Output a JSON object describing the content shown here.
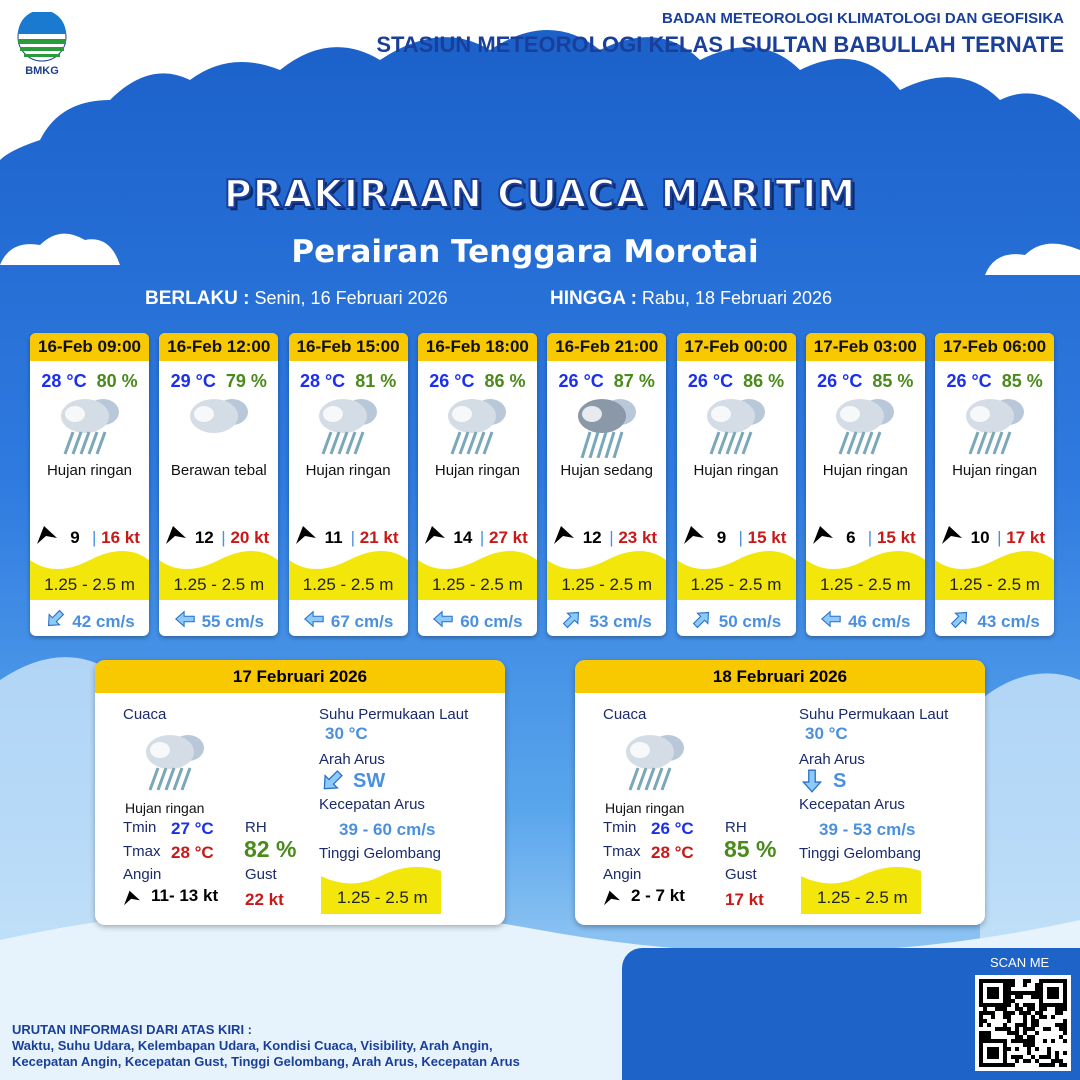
{
  "header": {
    "logo_text": "BMKG",
    "org_line1": "BADAN METEOROLOGI KLIMATOLOGI DAN GEOFISIKA",
    "org_line2": "STASIUN METEOROLOGI KELAS I SULTAN BABULLAH TERNATE"
  },
  "title": "PRAKIRAAN CUACA MARITIM",
  "subtitle": "Perairan Tenggara Morotai",
  "validity": {
    "from_label": "BERLAKU :",
    "from_date": "Senin, 16 Februari 2026",
    "to_label": "HINGGA :",
    "to_date": "Rabu, 18 Februari 2026"
  },
  "colors": {
    "header_yellow": "#f8c800",
    "temp_blue": "#1a2ff0",
    "rh_green": "#4a8a1a",
    "gust_red": "#c81818",
    "current_blue": "#4a90e0",
    "wave_yellow": "#f2e60a"
  },
  "forecasts": [
    {
      "time": "16-Feb 09:00",
      "temp": "28 °C",
      "rh": "80 %",
      "icon": "light-rain-icon",
      "weather": "Hujan ringan",
      "wind": "9",
      "gust": "16 kt",
      "wave": "1.25 - 2.5 m",
      "current_dir": "SW",
      "current": "42 cm/s"
    },
    {
      "time": "16-Feb 12:00",
      "temp": "29 °C",
      "rh": "79 %",
      "icon": "overcast-cloud-icon",
      "weather": "Berawan tebal",
      "wind": "12",
      "gust": "20 kt",
      "wave": "1.25 - 2.5 m",
      "current_dir": "W",
      "current": "55 cm/s"
    },
    {
      "time": "16-Feb 15:00",
      "temp": "28 °C",
      "rh": "81 %",
      "icon": "light-rain-icon",
      "weather": "Hujan ringan",
      "wind": "11",
      "gust": "21 kt",
      "wave": "1.25 - 2.5 m",
      "current_dir": "W",
      "current": "67 cm/s"
    },
    {
      "time": "16-Feb 18:00",
      "temp": "26 °C",
      "rh": "86 %",
      "icon": "light-rain-icon",
      "weather": "Hujan ringan",
      "wind": "14",
      "gust": "27 kt",
      "wave": "1.25 - 2.5 m",
      "current_dir": "W",
      "current": "60 cm/s"
    },
    {
      "time": "16-Feb 21:00",
      "temp": "26 °C",
      "rh": "87 %",
      "icon": "moderate-rain-icon",
      "weather": "Hujan sedang",
      "wind": "12",
      "gust": "23 kt",
      "wave": "1.25 - 2.5 m",
      "current_dir": "NE",
      "current": "53 cm/s"
    },
    {
      "time": "17-Feb 00:00",
      "temp": "26 °C",
      "rh": "86 %",
      "icon": "light-rain-icon",
      "weather": "Hujan ringan",
      "wind": "9",
      "gust": "15 kt",
      "wave": "1.25 - 2.5 m",
      "current_dir": "NE",
      "current": "50 cm/s"
    },
    {
      "time": "17-Feb 03:00",
      "temp": "26 °C",
      "rh": "85 %",
      "icon": "light-rain-icon",
      "weather": "Hujan ringan",
      "wind": "6",
      "gust": "15 kt",
      "wave": "1.25 - 2.5 m",
      "current_dir": "W",
      "current": "46 cm/s"
    },
    {
      "time": "17-Feb 06:00",
      "temp": "26 °C",
      "rh": "85 %",
      "icon": "light-rain-icon",
      "weather": "Hujan ringan",
      "wind": "10",
      "gust": "17 kt",
      "wave": "1.25 - 2.5 m",
      "current_dir": "NE",
      "current": "43 cm/s"
    }
  ],
  "labels": {
    "cuaca": "Cuaca",
    "sst": "Suhu Permukaan Laut",
    "arah_arus": "Arah Arus",
    "kec_arus": "Kecepatan Arus",
    "tinggi": "Tinggi Gelombang",
    "tmin": "Tmin",
    "tmax": "Tmax",
    "rh": "RH",
    "angin": "Angin",
    "gust": "Gust"
  },
  "daily": [
    {
      "date": "17 Februari 2026",
      "weather": "Hujan ringan",
      "tmin": "27 °C",
      "tmax": "28 °C",
      "rh": "82 %",
      "wind": "11- 13 kt",
      "gust": "22 kt",
      "sst": "30 °C",
      "current_dir": "SW",
      "current": "39 - 60 cm/s",
      "wave": "1.25 - 2.5 m"
    },
    {
      "date": "18 Februari 2026",
      "weather": "Hujan ringan",
      "tmin": "26 °C",
      "tmax": "28 °C",
      "rh": "85 %",
      "wind": "2  - 7 kt",
      "gust": "17 kt",
      "sst": "30 °C",
      "current_dir": "S",
      "current": "39 - 53 cm/s",
      "wave": "1.25 - 2.5 m"
    }
  ],
  "footer": {
    "scan": "SCAN ME",
    "title": "URUTAN INFORMASI DARI ATAS KIRI :",
    "line1": "Waktu, Suhu Udara, Kelembapan Udara, Kondisi Cuaca, Visibility, Arah Angin,",
    "line2": "Kecepatan Angin, Kecepatan Gust, Tinggi Gelombang, Arah Arus, Kecepatan Arus"
  }
}
